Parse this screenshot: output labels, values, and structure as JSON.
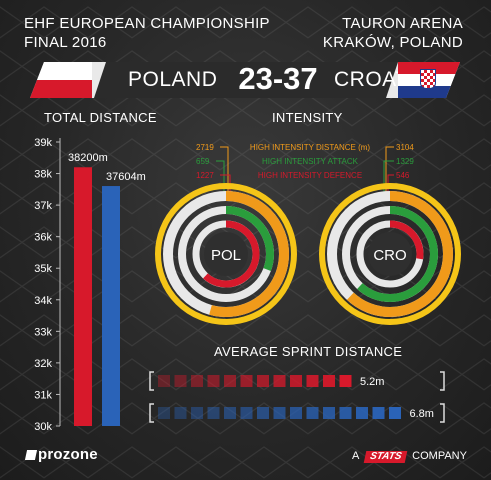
{
  "header": {
    "event_line1": "EHF EUROPEAN CHAMPIONSHIP",
    "event_line2": "FINAL 2016",
    "venue_line1": "TAURON ARENA",
    "venue_line2": "KRAKÓW, POLAND"
  },
  "match": {
    "team_home": "POLAND",
    "score": "23-37",
    "team_away": "CROATIA"
  },
  "colors": {
    "poland": "#d7192b",
    "croatia": "#2a63b8",
    "orange": "#f09a1a",
    "green": "#2a9d3c",
    "red": "#d7192b",
    "yellow": "#f5c518"
  },
  "footer": {
    "brand": "prozone",
    "company_prefix": "A",
    "company_badge": "STATS",
    "company_suffix": "COMPANY"
  },
  "chart_data": [
    {
      "type": "bar",
      "title": "TOTAL DISTANCE",
      "categories": [
        "Poland",
        "Croatia"
      ],
      "values": [
        38200,
        37604
      ],
      "data_labels": [
        "38200m",
        "37604m"
      ],
      "ylim": [
        30000,
        39000
      ],
      "yticks": [
        30000,
        31000,
        32000,
        33000,
        34000,
        35000,
        36000,
        37000,
        38000,
        39000
      ],
      "ytick_labels": [
        "30k",
        "31k",
        "32k",
        "33k",
        "34k",
        "35k",
        "36k",
        "37k",
        "38k",
        "39k"
      ],
      "colors": [
        "#d7192b",
        "#2a63b8"
      ]
    },
    {
      "type": "pie",
      "title": "INTENSITY",
      "metrics": [
        "HIGH INTENSITY DISTANCE (m)",
        "HIGH INTENSITY ATTACK",
        "HIGH INTENSITY DEFENCE"
      ],
      "metric_colors": [
        "#f09a1a",
        "#2a9d3c",
        "#d7192b"
      ],
      "series": [
        {
          "name": "POL",
          "values": [
            2719,
            659,
            1227
          ]
        },
        {
          "name": "CRO",
          "values": [
            3104,
            1329,
            546
          ]
        }
      ],
      "left_labels": [
        "2719",
        "659",
        "1227"
      ],
      "right_labels": [
        "3104",
        "1329",
        "546"
      ]
    },
    {
      "type": "bar",
      "title": "AVERAGE SPRINT DISTANCE",
      "orientation": "horizontal",
      "categories": [
        "Poland",
        "Croatia"
      ],
      "values": [
        5.2,
        6.8
      ],
      "data_labels": [
        "5.2m",
        "6.8m"
      ],
      "colors": [
        "#d7192b",
        "#2a63b8"
      ]
    }
  ]
}
